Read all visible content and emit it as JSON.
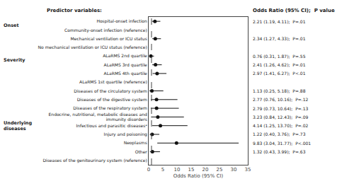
{
  "chart_data": {
    "type": "forest",
    "title": "Predictor variables:",
    "subtitle": "Odds Ratio (95% CI);  P value",
    "xlabel": "Odds Ratio (95% CI)",
    "xlim": [
      0,
      35
    ],
    "xticks": [
      0,
      5,
      10,
      15,
      20,
      25,
      30,
      35
    ],
    "grid": false,
    "color": "#111111",
    "reference_line": 1.0,
    "categories": [
      "Hospital-onset infection",
      "Community-onset infection (reference)",
      "Mechanical ventilation or ICU status",
      "No mechanical ventilation or ICU status (reference)",
      "ALaRMS 2nd quartile",
      "ALaRMS 3rd quartile",
      "ALaRMS 4th quartile",
      "ALaRMS 1st quartile (reference)",
      "Diseases of the circulatory system",
      "Diseases of the digestive system",
      "Diseases of the respiratory system",
      "Endocrine, nutritional, metabolic diseases and\nimmunity disorders",
      "Infectious and parasitic diseasesᵃ",
      "Injury and poisoning",
      "Neoplasms",
      "Other",
      "Diseases of the genitourinary system (reference)"
    ],
    "values": [
      2.21,
      null,
      2.34,
      null,
      0.76,
      2.41,
      2.97,
      null,
      1.13,
      2.77,
      2.79,
      3.23,
      4.14,
      1.22,
      9.83,
      1.32,
      null
    ],
    "ci_low": [
      1.19,
      null,
      1.27,
      null,
      0.31,
      1.26,
      1.41,
      null,
      0.25,
      0.76,
      0.73,
      0.84,
      1.25,
      0.4,
      3.04,
      0.43,
      null
    ],
    "ci_high": [
      4.11,
      null,
      4.33,
      null,
      1.87,
      4.62,
      6.27,
      null,
      5.18,
      10.16,
      10.64,
      12.43,
      13.7,
      3.76,
      31.77,
      3.99,
      null
    ],
    "data_labels": true,
    "value_labels": [
      "2.21 (1.19, 4.11);  P=.01",
      null,
      "2.34 (1.27, 4.33);  P=.01",
      null,
      "0.76 (0.31, 1.87);  P=.55",
      "2.41 (1.26, 4.62);  P=.01",
      "2.97 (1.41, 6.27);  P<.01",
      null,
      "1.13 (0.25, 5.18);  P=.88",
      "2.77 (0.76, 10.16);  P=.12",
      "2.79 (0.73, 10.64);  P=.13",
      "3.23 (0.84, 12.43);  P=.09",
      "4.14 (1.25, 13.70);  P=.02",
      "1.22 (0.40, 3.76);  P=.73",
      "9.83 (3.04, 31.77);  P<.001",
      "1.32 (0.43, 3.99);  P=.63",
      null
    ],
    "annotations": [
      {
        "text": "Onset",
        "category": "Hospital-onset infection"
      },
      {
        "text": "Severity",
        "category": "Mechanical ventilation or ICU status"
      },
      {
        "text": "Underlying\ndiseases",
        "category": "Diseases of the circulatory system"
      }
    ]
  }
}
